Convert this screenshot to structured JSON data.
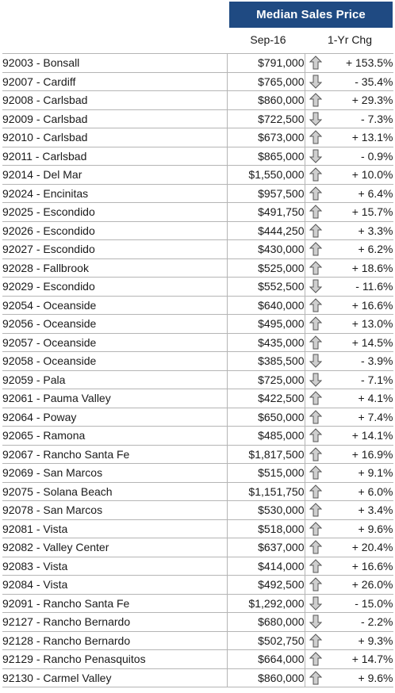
{
  "header": {
    "title": "Median Sales Price",
    "col_date": "Sep-16",
    "col_change": "1-Yr Chg"
  },
  "rows": [
    {
      "area": "92003 - Bonsall",
      "price": "$791,000",
      "dir": "up",
      "change": "+ 153.5%"
    },
    {
      "area": "92007 - Cardiff",
      "price": "$765,000",
      "dir": "down",
      "change": "- 35.4%"
    },
    {
      "area": "92008 - Carlsbad",
      "price": "$860,000",
      "dir": "up",
      "change": "+ 29.3%"
    },
    {
      "area": "92009 - Carlsbad",
      "price": "$722,500",
      "dir": "down",
      "change": "- 7.3%"
    },
    {
      "area": "92010 - Carlsbad",
      "price": "$673,000",
      "dir": "up",
      "change": "+ 13.1%"
    },
    {
      "area": "92011 - Carlsbad",
      "price": "$865,000",
      "dir": "down",
      "change": "- 0.9%"
    },
    {
      "area": "92014 - Del Mar",
      "price": "$1,550,000",
      "dir": "up",
      "change": "+ 10.0%"
    },
    {
      "area": "92024 - Encinitas",
      "price": "$957,500",
      "dir": "up",
      "change": "+ 6.4%"
    },
    {
      "area": "92025 - Escondido",
      "price": "$491,750",
      "dir": "up",
      "change": "+ 15.7%"
    },
    {
      "area": "92026 - Escondido",
      "price": "$444,250",
      "dir": "up",
      "change": "+ 3.3%"
    },
    {
      "area": "92027 - Escondido",
      "price": "$430,000",
      "dir": "up",
      "change": "+ 6.2%"
    },
    {
      "area": "92028 - Fallbrook",
      "price": "$525,000",
      "dir": "up",
      "change": "+ 18.6%"
    },
    {
      "area": "92029 - Escondido",
      "price": "$552,500",
      "dir": "down",
      "change": "- 11.6%"
    },
    {
      "area": "92054 - Oceanside",
      "price": "$640,000",
      "dir": "up",
      "change": "+ 16.6%"
    },
    {
      "area": "92056 - Oceanside",
      "price": "$495,000",
      "dir": "up",
      "change": "+ 13.0%"
    },
    {
      "area": "92057 - Oceanside",
      "price": "$435,000",
      "dir": "up",
      "change": "+ 14.5%"
    },
    {
      "area": "92058 - Oceanside",
      "price": "$385,500",
      "dir": "down",
      "change": "- 3.9%"
    },
    {
      "area": "92059 - Pala",
      "price": "$725,000",
      "dir": "down",
      "change": "- 7.1%"
    },
    {
      "area": "92061 - Pauma Valley",
      "price": "$422,500",
      "dir": "up",
      "change": "+ 4.1%"
    },
    {
      "area": "92064 - Poway",
      "price": "$650,000",
      "dir": "up",
      "change": "+ 7.4%"
    },
    {
      "area": "92065 - Ramona",
      "price": "$485,000",
      "dir": "up",
      "change": "+ 14.1%"
    },
    {
      "area": "92067 - Rancho Santa Fe",
      "price": "$1,817,500",
      "dir": "up",
      "change": "+ 16.9%"
    },
    {
      "area": "92069 - San Marcos",
      "price": "$515,000",
      "dir": "up",
      "change": "+ 9.1%"
    },
    {
      "area": "92075 - Solana Beach",
      "price": "$1,151,750",
      "dir": "up",
      "change": "+ 6.0%"
    },
    {
      "area": "92078 - San Marcos",
      "price": "$530,000",
      "dir": "up",
      "change": "+ 3.4%"
    },
    {
      "area": "92081 - Vista",
      "price": "$518,000",
      "dir": "up",
      "change": "+ 9.6%"
    },
    {
      "area": "92082 - Valley Center",
      "price": "$637,000",
      "dir": "up",
      "change": "+ 20.4%"
    },
    {
      "area": "92083 - Vista",
      "price": "$414,000",
      "dir": "up",
      "change": "+ 16.6%"
    },
    {
      "area": "92084 - Vista",
      "price": "$492,500",
      "dir": "up",
      "change": "+ 26.0%"
    },
    {
      "area": "92091 - Rancho Santa Fe",
      "price": "$1,292,000",
      "dir": "down",
      "change": "- 15.0%"
    },
    {
      "area": "92127 - Rancho Bernardo",
      "price": "$680,000",
      "dir": "down",
      "change": "- 2.2%"
    },
    {
      "area": "92128 - Rancho Bernardo",
      "price": "$502,750",
      "dir": "up",
      "change": "+ 9.3%"
    },
    {
      "area": "92129 - Rancho Penasquitos",
      "price": "$664,000",
      "dir": "up",
      "change": "+ 14.7%"
    },
    {
      "area": "92130 - Carmel Valley",
      "price": "$860,000",
      "dir": "up",
      "change": "+ 9.6%"
    }
  ],
  "colors": {
    "banner": "#1f4a82",
    "arrow_fill": "#cfcfcf",
    "arrow_stroke": "#555555"
  }
}
